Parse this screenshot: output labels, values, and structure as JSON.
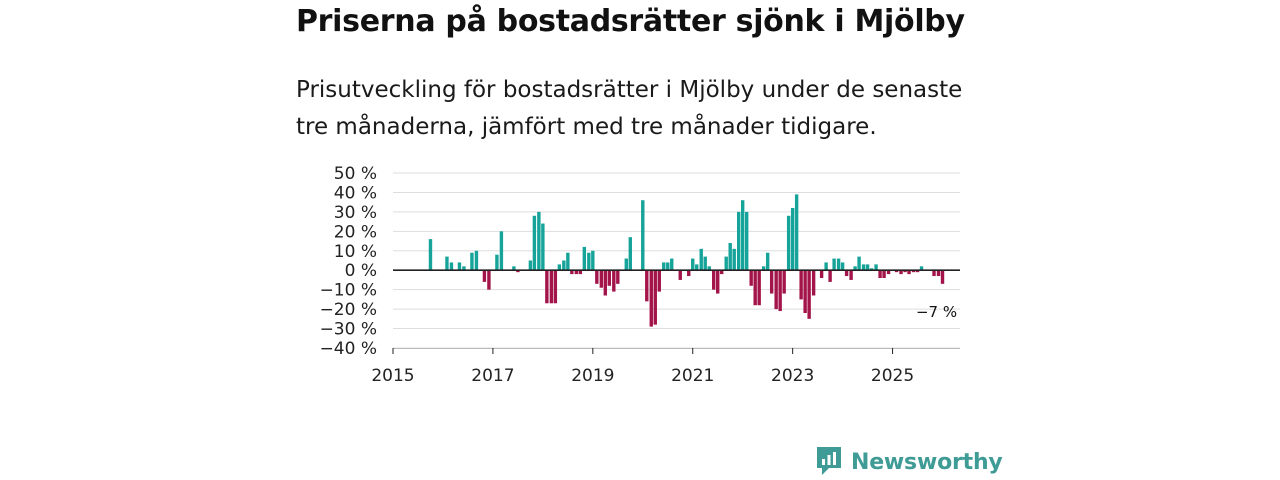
{
  "title": "Priserna på bostadsrätter sjönk i Mjölby",
  "subtitle": "Prisutveckling för bostadsrätter i Mjölby under de senaste tre månaderna, jämfört med tre månader tidigare.",
  "brand": {
    "name": "Newsworthy",
    "color": "#3e9b95",
    "icon": "bar-chart-speech-bubble-icon"
  },
  "colors": {
    "positive": "#16a39a",
    "negative": "#a3154a",
    "grid": "#dddddd",
    "axis": "#222222"
  },
  "chart_data": {
    "type": "bar",
    "title": "Priserna på bostadsrätter sjönk i Mjölby",
    "xlabel": "",
    "ylabel": "",
    "unit": "%",
    "ylim": [
      -40,
      50
    ],
    "yticks": [
      50,
      40,
      30,
      20,
      10,
      0,
      -10,
      -20,
      -30,
      -40
    ],
    "ytick_labels": [
      "50 %",
      "40 %",
      "30 %",
      "20 %",
      "10 %",
      "0 %",
      "−10 %",
      "−20 %",
      "−30 %",
      "−40 %"
    ],
    "xlim": [
      2015,
      2026.35
    ],
    "xticks": [
      2015,
      2017,
      2019,
      2021,
      2023,
      2025
    ],
    "xtick_labels": [
      "2015",
      "2017",
      "2019",
      "2021",
      "2023",
      "2025"
    ],
    "grid": true,
    "series": [
      {
        "name": "Prisutveckling",
        "points": [
          {
            "x": 2015.75,
            "y": 16
          },
          {
            "x": 2016.08,
            "y": 7
          },
          {
            "x": 2016.17,
            "y": 4
          },
          {
            "x": 2016.33,
            "y": 4
          },
          {
            "x": 2016.42,
            "y": 2
          },
          {
            "x": 2016.58,
            "y": 9
          },
          {
            "x": 2016.67,
            "y": 10
          },
          {
            "x": 2016.83,
            "y": -6
          },
          {
            "x": 2016.92,
            "y": -10
          },
          {
            "x": 2017.08,
            "y": 8
          },
          {
            "x": 2017.17,
            "y": 20
          },
          {
            "x": 2017.42,
            "y": 2
          },
          {
            "x": 2017.5,
            "y": -1
          },
          {
            "x": 2017.75,
            "y": 5
          },
          {
            "x": 2017.83,
            "y": 28
          },
          {
            "x": 2017.92,
            "y": 30
          },
          {
            "x": 2018.0,
            "y": 24
          },
          {
            "x": 2018.08,
            "y": -17
          },
          {
            "x": 2018.17,
            "y": -17
          },
          {
            "x": 2018.25,
            "y": -17
          },
          {
            "x": 2018.33,
            "y": 3
          },
          {
            "x": 2018.42,
            "y": 5
          },
          {
            "x": 2018.5,
            "y": 9
          },
          {
            "x": 2018.58,
            "y": -2
          },
          {
            "x": 2018.67,
            "y": -2
          },
          {
            "x": 2018.75,
            "y": -2
          },
          {
            "x": 2018.83,
            "y": 12
          },
          {
            "x": 2018.92,
            "y": 9
          },
          {
            "x": 2019.0,
            "y": 10
          },
          {
            "x": 2019.08,
            "y": -7
          },
          {
            "x": 2019.17,
            "y": -9
          },
          {
            "x": 2019.25,
            "y": -13
          },
          {
            "x": 2019.33,
            "y": -8
          },
          {
            "x": 2019.42,
            "y": -11
          },
          {
            "x": 2019.5,
            "y": -7
          },
          {
            "x": 2019.67,
            "y": 6
          },
          {
            "x": 2019.75,
            "y": 17
          },
          {
            "x": 2020.0,
            "y": 36
          },
          {
            "x": 2020.08,
            "y": -16
          },
          {
            "x": 2020.17,
            "y": -29
          },
          {
            "x": 2020.25,
            "y": -28
          },
          {
            "x": 2020.33,
            "y": -11
          },
          {
            "x": 2020.42,
            "y": 4
          },
          {
            "x": 2020.5,
            "y": 4
          },
          {
            "x": 2020.58,
            "y": 6
          },
          {
            "x": 2020.75,
            "y": -5
          },
          {
            "x": 2020.92,
            "y": -3
          },
          {
            "x": 2021.0,
            "y": 6
          },
          {
            "x": 2021.08,
            "y": 3
          },
          {
            "x": 2021.17,
            "y": 11
          },
          {
            "x": 2021.25,
            "y": 7
          },
          {
            "x": 2021.33,
            "y": 2
          },
          {
            "x": 2021.42,
            "y": -10
          },
          {
            "x": 2021.5,
            "y": -12
          },
          {
            "x": 2021.58,
            "y": -2
          },
          {
            "x": 2021.67,
            "y": 7
          },
          {
            "x": 2021.75,
            "y": 14
          },
          {
            "x": 2021.83,
            "y": 11
          },
          {
            "x": 2021.92,
            "y": 30
          },
          {
            "x": 2022.0,
            "y": 36
          },
          {
            "x": 2022.08,
            "y": 30
          },
          {
            "x": 2022.17,
            "y": -8
          },
          {
            "x": 2022.25,
            "y": -18
          },
          {
            "x": 2022.33,
            "y": -18
          },
          {
            "x": 2022.42,
            "y": 2
          },
          {
            "x": 2022.5,
            "y": 9
          },
          {
            "x": 2022.58,
            "y": -12
          },
          {
            "x": 2022.67,
            "y": -20
          },
          {
            "x": 2022.75,
            "y": -21
          },
          {
            "x": 2022.83,
            "y": -12
          },
          {
            "x": 2022.92,
            "y": 28
          },
          {
            "x": 2023.0,
            "y": 32
          },
          {
            "x": 2023.08,
            "y": 39
          },
          {
            "x": 2023.17,
            "y": -15
          },
          {
            "x": 2023.25,
            "y": -22
          },
          {
            "x": 2023.33,
            "y": -25
          },
          {
            "x": 2023.42,
            "y": -13
          },
          {
            "x": 2023.58,
            "y": -4
          },
          {
            "x": 2023.67,
            "y": 4
          },
          {
            "x": 2023.75,
            "y": -6
          },
          {
            "x": 2023.83,
            "y": 6
          },
          {
            "x": 2023.92,
            "y": 6
          },
          {
            "x": 2024.0,
            "y": 4
          },
          {
            "x": 2024.08,
            "y": -3
          },
          {
            "x": 2024.17,
            "y": -5
          },
          {
            "x": 2024.25,
            "y": 2
          },
          {
            "x": 2024.33,
            "y": 7
          },
          {
            "x": 2024.42,
            "y": 3
          },
          {
            "x": 2024.5,
            "y": 3
          },
          {
            "x": 2024.58,
            "y": 1
          },
          {
            "x": 2024.67,
            "y": 3
          },
          {
            "x": 2024.75,
            "y": -4
          },
          {
            "x": 2024.83,
            "y": -4
          },
          {
            "x": 2024.92,
            "y": -2
          },
          {
            "x": 2025.08,
            "y": -1
          },
          {
            "x": 2025.17,
            "y": -2
          },
          {
            "x": 2025.25,
            "y": -1
          },
          {
            "x": 2025.33,
            "y": -2
          },
          {
            "x": 2025.42,
            "y": -1
          },
          {
            "x": 2025.5,
            "y": -1
          },
          {
            "x": 2025.58,
            "y": 2
          },
          {
            "x": 2025.83,
            "y": -3
          },
          {
            "x": 2025.92,
            "y": -3
          },
          {
            "x": 2026.0,
            "y": -7
          }
        ]
      }
    ],
    "annotations": [
      {
        "text": "−7 %",
        "x": 2026.0,
        "y": -7
      }
    ]
  }
}
